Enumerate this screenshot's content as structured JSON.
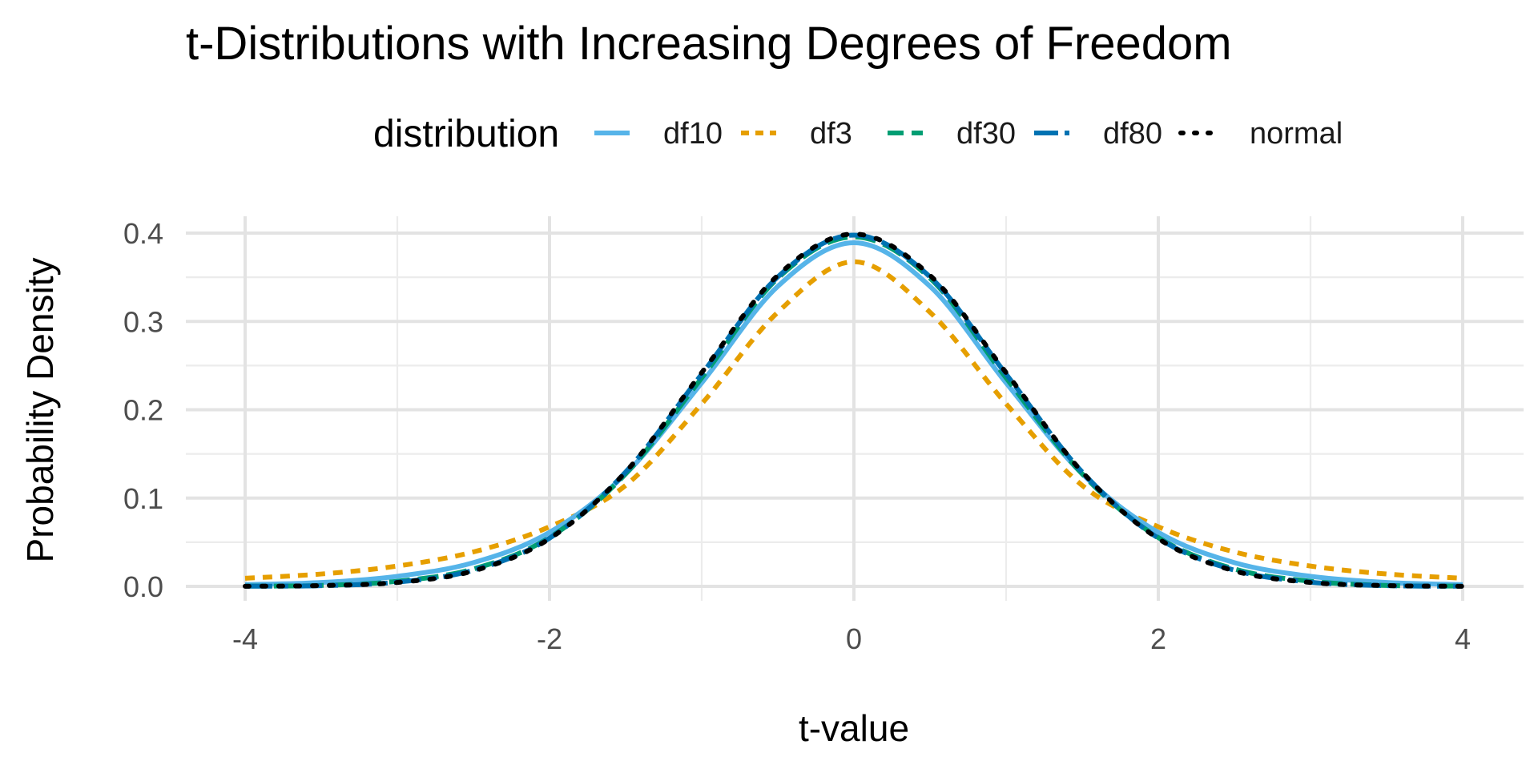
{
  "chart_data": {
    "type": "line",
    "title": "t-Distributions with Increasing Degrees of Freedom",
    "xlabel": "t-value",
    "ylabel": "Probability Density",
    "xlim": [
      -4,
      4
    ],
    "ylim": [
      0,
      0.4
    ],
    "x_ticks": [
      -4,
      -2,
      0,
      2,
      4
    ],
    "x_tick_labels": [
      "-4",
      "-2",
      "0",
      "2",
      "4"
    ],
    "y_ticks": [
      0,
      0.1,
      0.2,
      0.3,
      0.4
    ],
    "y_tick_labels": [
      "0.0",
      "0.1",
      "0.2",
      "0.3",
      "0.4"
    ],
    "grid": true,
    "legend": {
      "title": "distribution",
      "position": "top"
    },
    "x": [
      -4,
      -3.5,
      -3,
      -2.5,
      -2,
      -1.5,
      -1,
      -0.5,
      0,
      0.5,
      1,
      1.5,
      2,
      2.5,
      3,
      3.5,
      4
    ],
    "series": [
      {
        "name": "df10",
        "color": "#56B4E9",
        "dash": "solid",
        "values": [
          0.002,
          0.0044,
          0.0114,
          0.0269,
          0.0611,
          0.1274,
          0.2304,
          0.3397,
          0.3891,
          0.3397,
          0.2304,
          0.1274,
          0.0611,
          0.0269,
          0.0114,
          0.0044,
          0.002
        ]
      },
      {
        "name": "df3",
        "color": "#E69F00",
        "dash": "dashed",
        "values": [
          0.0092,
          0.014,
          0.023,
          0.039,
          0.0675,
          0.1143,
          0.2067,
          0.3104,
          0.3676,
          0.3104,
          0.2067,
          0.1143,
          0.0675,
          0.039,
          0.023,
          0.014,
          0.0092
        ]
      },
      {
        "name": "df30",
        "color": "#009E73",
        "dash": "longdash",
        "values": [
          0.0003,
          0.001,
          0.0058,
          0.0197,
          0.0553,
          0.1273,
          0.236,
          0.3489,
          0.3956,
          0.3489,
          0.236,
          0.1273,
          0.0553,
          0.0197,
          0.0058,
          0.001,
          0.0003
        ]
      },
      {
        "name": "df80",
        "color": "#0072B2",
        "dash": "twodash",
        "values": [
          0.0002,
          0.0008,
          0.0048,
          0.0183,
          0.0546,
          0.1294,
          0.2403,
          0.3504,
          0.3977,
          0.3504,
          0.2403,
          0.1294,
          0.0546,
          0.0183,
          0.0048,
          0.0008,
          0.0002
        ]
      },
      {
        "name": "normal",
        "color": "#000000",
        "dash": "dotted",
        "values": [
          0.0001,
          0.0009,
          0.0044,
          0.0175,
          0.054,
          0.1295,
          0.242,
          0.3521,
          0.3989,
          0.3521,
          0.242,
          0.1295,
          0.054,
          0.0175,
          0.0044,
          0.0009,
          0.0001
        ]
      }
    ]
  }
}
